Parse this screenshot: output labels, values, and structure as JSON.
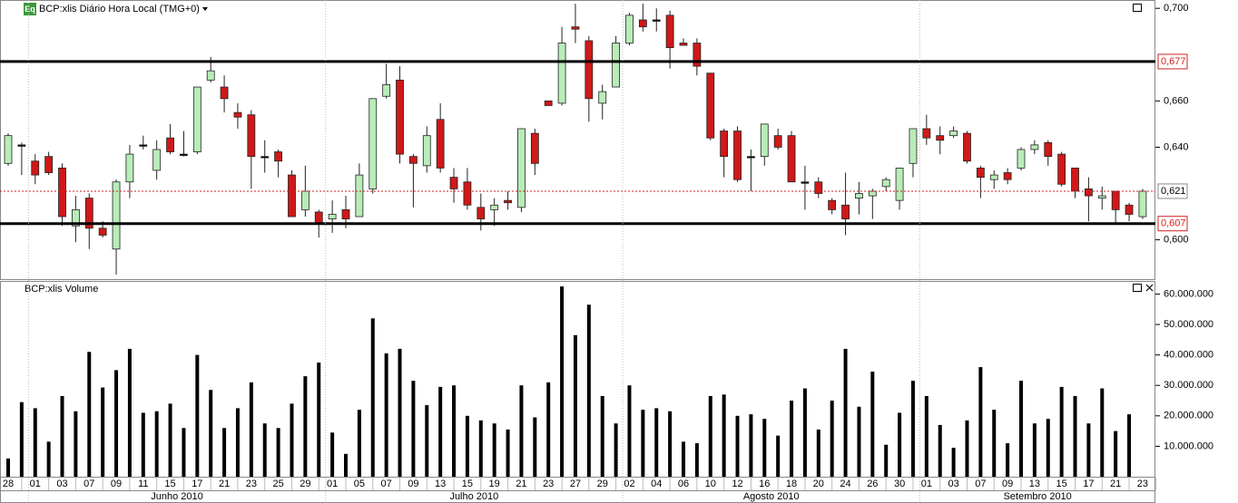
{
  "chart_data": [
    {
      "type": "candlestick",
      "title": "BCP:xlis Diário Hora Local (TMG+0)",
      "badge": "Eq",
      "open": [
        0.633,
        0.641,
        0.634,
        0.636,
        0.631,
        0.606,
        0.618,
        0.605,
        0.596,
        0.625,
        0.641,
        0.63,
        0.644,
        0.637,
        0.638,
        0.669,
        0.666,
        0.655,
        0.654,
        0.636,
        0.638,
        0.628,
        0.613,
        0.612,
        0.609,
        0.613,
        0.61,
        0.622,
        0.662,
        0.669,
        0.636,
        0.632,
        0.652,
        0.627,
        0.625,
        0.614,
        0.613,
        0.617,
        0.614,
        0.646,
        0.66,
        0.659,
        0.692,
        0.686,
        0.659,
        0.666,
        0.685,
        0.695,
        0.695,
        0.697,
        0.685,
        0.685,
        0.672,
        0.647,
        0.647,
        0.636,
        0.636,
        0.645,
        0.645,
        0.625,
        0.625,
        0.617,
        0.615,
        0.618,
        0.619,
        0.623,
        0.617,
        0.633,
        0.648,
        0.645,
        0.645,
        0.646,
        0.631,
        0.626,
        0.629,
        0.631,
        0.639,
        0.642,
        0.637,
        0.631,
        0.622,
        0.618,
        0.621,
        0.615,
        0.61
      ],
      "high": [
        0.646,
        0.642,
        0.637,
        0.638,
        0.633,
        0.619,
        0.62,
        0.608,
        0.626,
        0.641,
        0.645,
        0.643,
        0.65,
        0.647,
        0.666,
        0.679,
        0.671,
        0.659,
        0.656,
        0.643,
        0.639,
        0.63,
        0.632,
        0.613,
        0.617,
        0.619,
        0.633,
        0.661,
        0.676,
        0.675,
        0.637,
        0.649,
        0.659,
        0.631,
        0.631,
        0.62,
        0.618,
        0.621,
        0.648,
        0.648,
        0.66,
        0.692,
        0.702,
        0.688,
        0.667,
        0.688,
        0.698,
        0.702,
        0.7,
        0.699,
        0.687,
        0.687,
        0.672,
        0.648,
        0.649,
        0.639,
        0.65,
        0.648,
        0.647,
        0.632,
        0.627,
        0.618,
        0.629,
        0.625,
        0.622,
        0.627,
        0.631,
        0.648,
        0.654,
        0.649,
        0.649,
        0.647,
        0.632,
        0.63,
        0.631,
        0.64,
        0.643,
        0.643,
        0.638,
        0.631,
        0.627,
        0.623,
        0.621,
        0.616,
        0.622
      ],
      "low": [
        0.632,
        0.628,
        0.624,
        0.628,
        0.606,
        0.599,
        0.596,
        0.601,
        0.585,
        0.618,
        0.639,
        0.626,
        0.637,
        0.636,
        0.637,
        0.668,
        0.655,
        0.648,
        0.622,
        0.629,
        0.627,
        0.61,
        0.61,
        0.601,
        0.603,
        0.605,
        0.61,
        0.62,
        0.661,
        0.633,
        0.614,
        0.629,
        0.629,
        0.616,
        0.613,
        0.604,
        0.606,
        0.613,
        0.612,
        0.628,
        0.658,
        0.658,
        0.685,
        0.651,
        0.652,
        0.666,
        0.684,
        0.69,
        0.69,
        0.674,
        0.684,
        0.671,
        0.643,
        0.627,
        0.625,
        0.621,
        0.632,
        0.639,
        0.625,
        0.613,
        0.618,
        0.611,
        0.602,
        0.611,
        0.609,
        0.621,
        0.613,
        0.627,
        0.641,
        0.637,
        0.644,
        0.633,
        0.618,
        0.622,
        0.624,
        0.63,
        0.637,
        0.632,
        0.623,
        0.618,
        0.608,
        0.613,
        0.607,
        0.608,
        0.609
      ],
      "close": [
        0.645,
        0.641,
        0.628,
        0.629,
        0.61,
        0.613,
        0.605,
        0.602,
        0.625,
        0.637,
        0.641,
        0.639,
        0.638,
        0.637,
        0.666,
        0.673,
        0.661,
        0.653,
        0.636,
        0.636,
        0.634,
        0.61,
        0.621,
        0.607,
        0.611,
        0.609,
        0.628,
        0.661,
        0.667,
        0.637,
        0.633,
        0.645,
        0.631,
        0.622,
        0.615,
        0.609,
        0.615,
        0.616,
        0.648,
        0.633,
        0.658,
        0.685,
        0.691,
        0.661,
        0.664,
        0.685,
        0.697,
        0.692,
        0.695,
        0.683,
        0.684,
        0.675,
        0.644,
        0.636,
        0.626,
        0.636,
        0.65,
        0.64,
        0.625,
        0.625,
        0.62,
        0.613,
        0.609,
        0.62,
        0.621,
        0.626,
        0.631,
        0.648,
        0.644,
        0.643,
        0.647,
        0.634,
        0.627,
        0.628,
        0.626,
        0.639,
        0.641,
        0.636,
        0.624,
        0.621,
        0.619,
        0.619,
        0.613,
        0.611,
        0.621
      ],
      "up_color": "#b8ecb8",
      "down_color": "#d01818",
      "ylim": [
        0.583,
        0.7036
      ],
      "yticks": [
        {
          "value": 0.6,
          "label": "0,600"
        },
        {
          "value": 0.64,
          "label": "0,640"
        },
        {
          "value": 0.66,
          "label": "0,660"
        },
        {
          "value": 0.7,
          "label": "0,700"
        }
      ],
      "levels": [
        {
          "value": 0.677,
          "label": "0,677"
        },
        {
          "value": 0.607,
          "label": "0,607"
        }
      ],
      "last": {
        "value": 0.621,
        "label": "0,621"
      }
    },
    {
      "type": "bar",
      "title": "BCP:xlis Volume",
      "categories": [
        "28",
        null,
        "01",
        null,
        "03",
        null,
        "07",
        null,
        "09",
        null,
        "11",
        null,
        "15",
        null,
        "17",
        null,
        "21",
        null,
        "23",
        null,
        "25",
        null,
        "29",
        null,
        "01",
        null,
        "05",
        null,
        "07",
        null,
        "09",
        null,
        "13",
        null,
        "15",
        null,
        "19",
        null,
        "21",
        null,
        "23",
        null,
        "27",
        null,
        "29",
        null,
        "02",
        null,
        "04",
        null,
        "06",
        null,
        "10",
        null,
        "12",
        null,
        "16",
        null,
        "18",
        null,
        "20",
        null,
        "24",
        null,
        "26",
        null,
        "30",
        null,
        "01",
        null,
        "03",
        null,
        "07",
        null,
        "09",
        null,
        "13",
        null,
        "15",
        null,
        "17",
        null,
        "21",
        null,
        "23"
      ],
      "months": [
        "Junho 2010",
        "Julho 2010",
        "Agosto 2010",
        "Setembro 2010"
      ],
      "values": [
        6000000,
        24500000,
        22500000,
        11500000,
        26500000,
        21500000,
        41000000,
        29300000,
        35000000,
        42000000,
        21000000,
        21500000,
        24000000,
        16000000,
        40000000,
        28500000,
        16000000,
        22500000,
        31000000,
        17500000,
        16000000,
        24000000,
        33000000,
        37500000,
        14500000,
        7500000,
        22000000,
        52000000,
        40500000,
        42000000,
        31500000,
        23500000,
        29500000,
        30000000,
        20000000,
        18500000,
        17500000,
        15500000,
        30000000,
        19500000,
        31000000,
        62500000,
        46500000,
        56500000,
        26500000,
        17500000,
        30000000,
        22000000,
        22500000,
        21500000,
        11500000,
        11000000,
        26500000,
        27000000,
        20000000,
        20500000,
        19000000,
        13500000,
        25000000,
        29000000,
        15500000,
        25000000,
        42000000,
        23000000,
        34500000,
        10500000,
        21000000,
        31500000,
        26500000,
        17000000,
        9500000,
        18500000,
        36000000,
        22000000,
        11000000,
        31500000,
        17500000,
        19000000,
        29500000,
        26500000,
        17500000,
        29000000,
        15000000,
        20500000,
        null
      ],
      "color": "#000000",
      "ylim": [
        0,
        64000000
      ],
      "yticks": [
        {
          "value": 10000000,
          "label": "10.000.000"
        },
        {
          "value": 20000000,
          "label": "20.000.000"
        },
        {
          "value": 30000000,
          "label": "30.000.000"
        },
        {
          "value": 40000000,
          "label": "40.000.000"
        },
        {
          "value": 50000000,
          "label": "50.000.000"
        },
        {
          "value": 60000000,
          "label": "60.000.000"
        }
      ]
    }
  ]
}
